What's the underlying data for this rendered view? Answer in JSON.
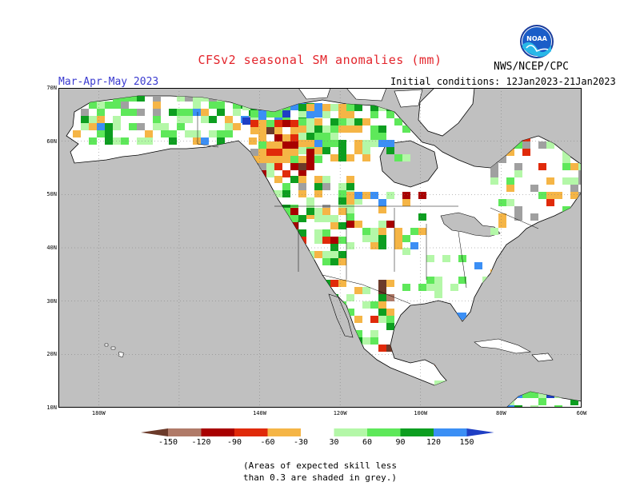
{
  "header": {
    "title": "CFSv2 seasonal SM anomalies (mm)",
    "agency": "NWS/NCEP/CPC",
    "season": "Mar-Apr-May 2023",
    "initial_conditions": "Initial conditions: 12Jan2023-21Jan2023",
    "logo_text": "NOAA"
  },
  "map": {
    "projection": "cylindrical",
    "lon_range": [
      -190,
      -60
    ],
    "lat_range": [
      10,
      70
    ],
    "lat_labels": [
      "70N",
      "60N",
      "50N",
      "40N",
      "30N",
      "20N",
      "10N"
    ],
    "lon_labels": [
      "180W",
      "140W",
      "120W",
      "100W",
      "80W",
      "60W"
    ],
    "ocean_color": "#c0c0c0",
    "land_color": "#ffffff",
    "grid": "dotted"
  },
  "legend": {
    "labels": [
      "-150",
      "-120",
      "-90",
      "-60",
      "-30",
      "30",
      "60",
      "90",
      "120",
      "150"
    ],
    "colors": {
      "below_min": "#6b3a2a",
      "m150_m120": "#b07a68",
      "m120_m90": "#a80000",
      "m90_m60": "#e02a0a",
      "m60_m30": "#f5b546",
      "m30_30": "#ffffff",
      "p30_p60": "#b4f7a8",
      "p60_p90": "#5ee85a",
      "p90_p120": "#0d9e20",
      "p120_p150": "#3b8ff5",
      "above_max": "#1f3fc4"
    }
  },
  "notes": {
    "line1": "(Areas of expected skill less",
    "line2": "than 0.3 are shaded in grey.)"
  }
}
